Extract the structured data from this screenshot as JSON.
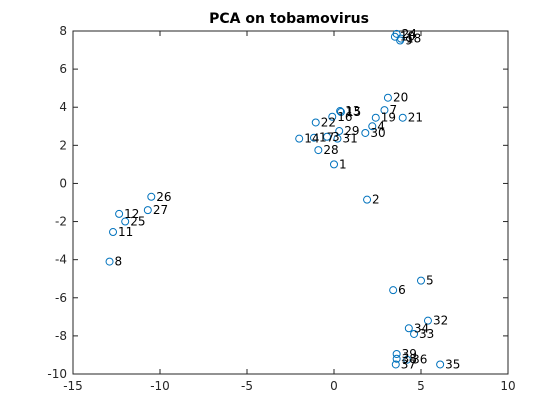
{
  "chart_data": {
    "type": "scatter",
    "title": "PCA on tobamovirus",
    "xlabel": "",
    "ylabel": "",
    "xlim": [
      -15,
      10
    ],
    "ylim": [
      -10,
      8
    ],
    "xticks": [
      -15,
      -10,
      -5,
      0,
      5,
      10
    ],
    "yticks": [
      -10,
      -8,
      -6,
      -4,
      -2,
      0,
      2,
      4,
      6,
      8
    ],
    "grid": false,
    "marker": "open-circle",
    "marker_color": "#0072BD",
    "points": [
      {
        "label": "1",
        "x": 0.0,
        "y": 1.0
      },
      {
        "label": "2",
        "x": 1.9,
        "y": -0.85
      },
      {
        "label": "3",
        "x": -0.4,
        "y": 2.45
      },
      {
        "label": "5",
        "x": 5.0,
        "y": -5.1
      },
      {
        "label": "6",
        "x": 3.4,
        "y": -5.6
      },
      {
        "label": "7",
        "x": 2.9,
        "y": 3.85
      },
      {
        "label": "8",
        "x": -12.9,
        "y": -4.1
      },
      {
        "label": "9",
        "x": 3.8,
        "y": 7.5
      },
      {
        "label": "10",
        "x": 3.5,
        "y": 7.7
      },
      {
        "label": "11",
        "x": -12.7,
        "y": -2.55
      },
      {
        "label": "12",
        "x": -12.35,
        "y": -1.6
      },
      {
        "label": "13",
        "x": 0.35,
        "y": 3.8
      },
      {
        "label": "14",
        "x": -2.0,
        "y": 2.35
      },
      {
        "label": "15",
        "x": 0.4,
        "y": 3.75
      },
      {
        "label": "16",
        "x": -0.1,
        "y": 3.5
      },
      {
        "label": "17",
        "x": -1.15,
        "y": 2.4
      },
      {
        "label": "18",
        "x": 3.85,
        "y": 7.6
      },
      {
        "label": "19",
        "x": 2.4,
        "y": 3.45
      },
      {
        "label": "20",
        "x": 3.1,
        "y": 4.5
      },
      {
        "label": "21",
        "x": 3.95,
        "y": 3.45
      },
      {
        "label": "22",
        "x": -1.05,
        "y": 3.2
      },
      {
        "label": "24",
        "x": 3.6,
        "y": 7.85
      },
      {
        "label": "25",
        "x": -12.0,
        "y": -2.0
      },
      {
        "label": "26",
        "x": -10.5,
        "y": -0.7
      },
      {
        "label": "27",
        "x": -10.7,
        "y": -1.4
      },
      {
        "label": "28",
        "x": -0.9,
        "y": 1.75
      },
      {
        "label": "29",
        "x": 0.3,
        "y": 2.75
      },
      {
        "label": "30",
        "x": 1.8,
        "y": 2.65
      },
      {
        "label": "31",
        "x": 0.2,
        "y": 2.35
      },
      {
        "label": "32",
        "x": 5.4,
        "y": -7.2
      },
      {
        "label": "33",
        "x": 4.6,
        "y": -7.9
      },
      {
        "label": "34",
        "x": 4.3,
        "y": -7.6
      },
      {
        "label": "35",
        "x": 6.1,
        "y": -9.5
      },
      {
        "label": "36",
        "x": 4.2,
        "y": -9.25
      },
      {
        "label": "37",
        "x": 3.55,
        "y": -9.5
      },
      {
        "label": "38",
        "x": 3.6,
        "y": -9.2
      },
      {
        "label": "39",
        "x": 3.6,
        "y": -8.95
      },
      {
        "label": "4",
        "x": 2.2,
        "y": 3.0
      }
    ]
  }
}
